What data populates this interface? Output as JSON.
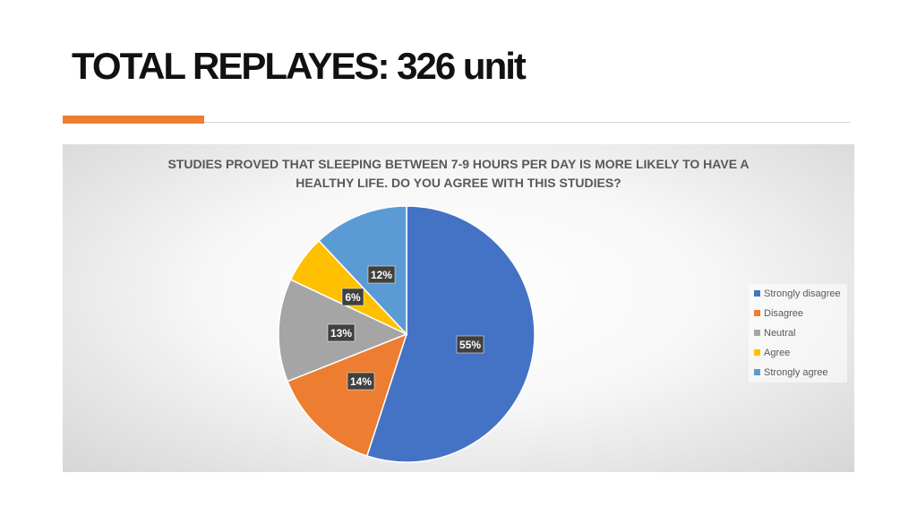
{
  "slide": {
    "title": "TOTAL REPLAYES: 326 unit"
  },
  "chart_data": {
    "type": "pie",
    "title": "STUDIES PROVED THAT SLEEPING BETWEEN 7-9 HOURS PER DAY IS MORE LIKELY TO HAVE A HEALTHY LIFE. DO YOU AGREE WITH THIS STUDIES?",
    "legend_position": "right",
    "slices": [
      {
        "name": "Strongly disagree",
        "value": 55,
        "label": "55%",
        "color": "#4472c4"
      },
      {
        "name": "Disagree",
        "value": 14,
        "label": "14%",
        "color": "#ed7d31"
      },
      {
        "name": "Neutral",
        "value": 13,
        "label": "13%",
        "color": "#a5a5a5"
      },
      {
        "name": "Agree",
        "value": 6,
        "label": "6%",
        "color": "#ffc000"
      },
      {
        "name": "Strongly agree",
        "value": 12,
        "label": "12%",
        "color": "#5b9bd5"
      }
    ]
  }
}
